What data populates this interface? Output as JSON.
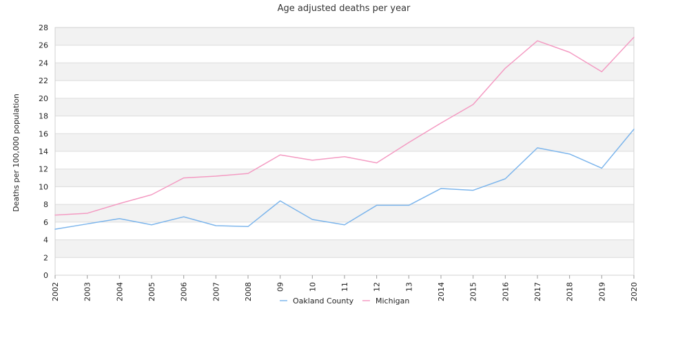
{
  "chart_data": {
    "type": "line",
    "title": "Age adjusted deaths per year",
    "xlabel": "",
    "ylabel": "Deaths per 100,000 population",
    "categories": [
      "2002",
      "2003",
      "2004",
      "2005",
      "2006",
      "2007",
      "2008",
      "09",
      "10",
      "11",
      "12",
      "13",
      "2014",
      "2015",
      "2016",
      "2017",
      "2018",
      "2019",
      "2020"
    ],
    "ylim": [
      0,
      28
    ],
    "yticks": [
      0,
      2,
      4,
      6,
      8,
      10,
      12,
      14,
      16,
      18,
      20,
      22,
      24,
      26,
      28
    ],
    "grid": "horizontal banded",
    "legend_position": "bottom",
    "series": [
      {
        "name": "Oakland County",
        "color": "#7cb5ec",
        "values": [
          5.2,
          5.8,
          6.4,
          5.7,
          6.6,
          5.6,
          5.5,
          8.4,
          6.3,
          5.7,
          7.9,
          7.9,
          9.8,
          9.6,
          10.9,
          14.4,
          13.7,
          12.1,
          16.5
        ]
      },
      {
        "name": "Michigan",
        "color": "#f49ac2",
        "values": [
          6.8,
          7.0,
          8.1,
          9.1,
          11.0,
          11.2,
          11.5,
          13.6,
          13.0,
          13.4,
          12.7,
          15.0,
          17.2,
          19.3,
          23.4,
          26.5,
          25.2,
          23.0,
          26.9
        ]
      }
    ]
  }
}
